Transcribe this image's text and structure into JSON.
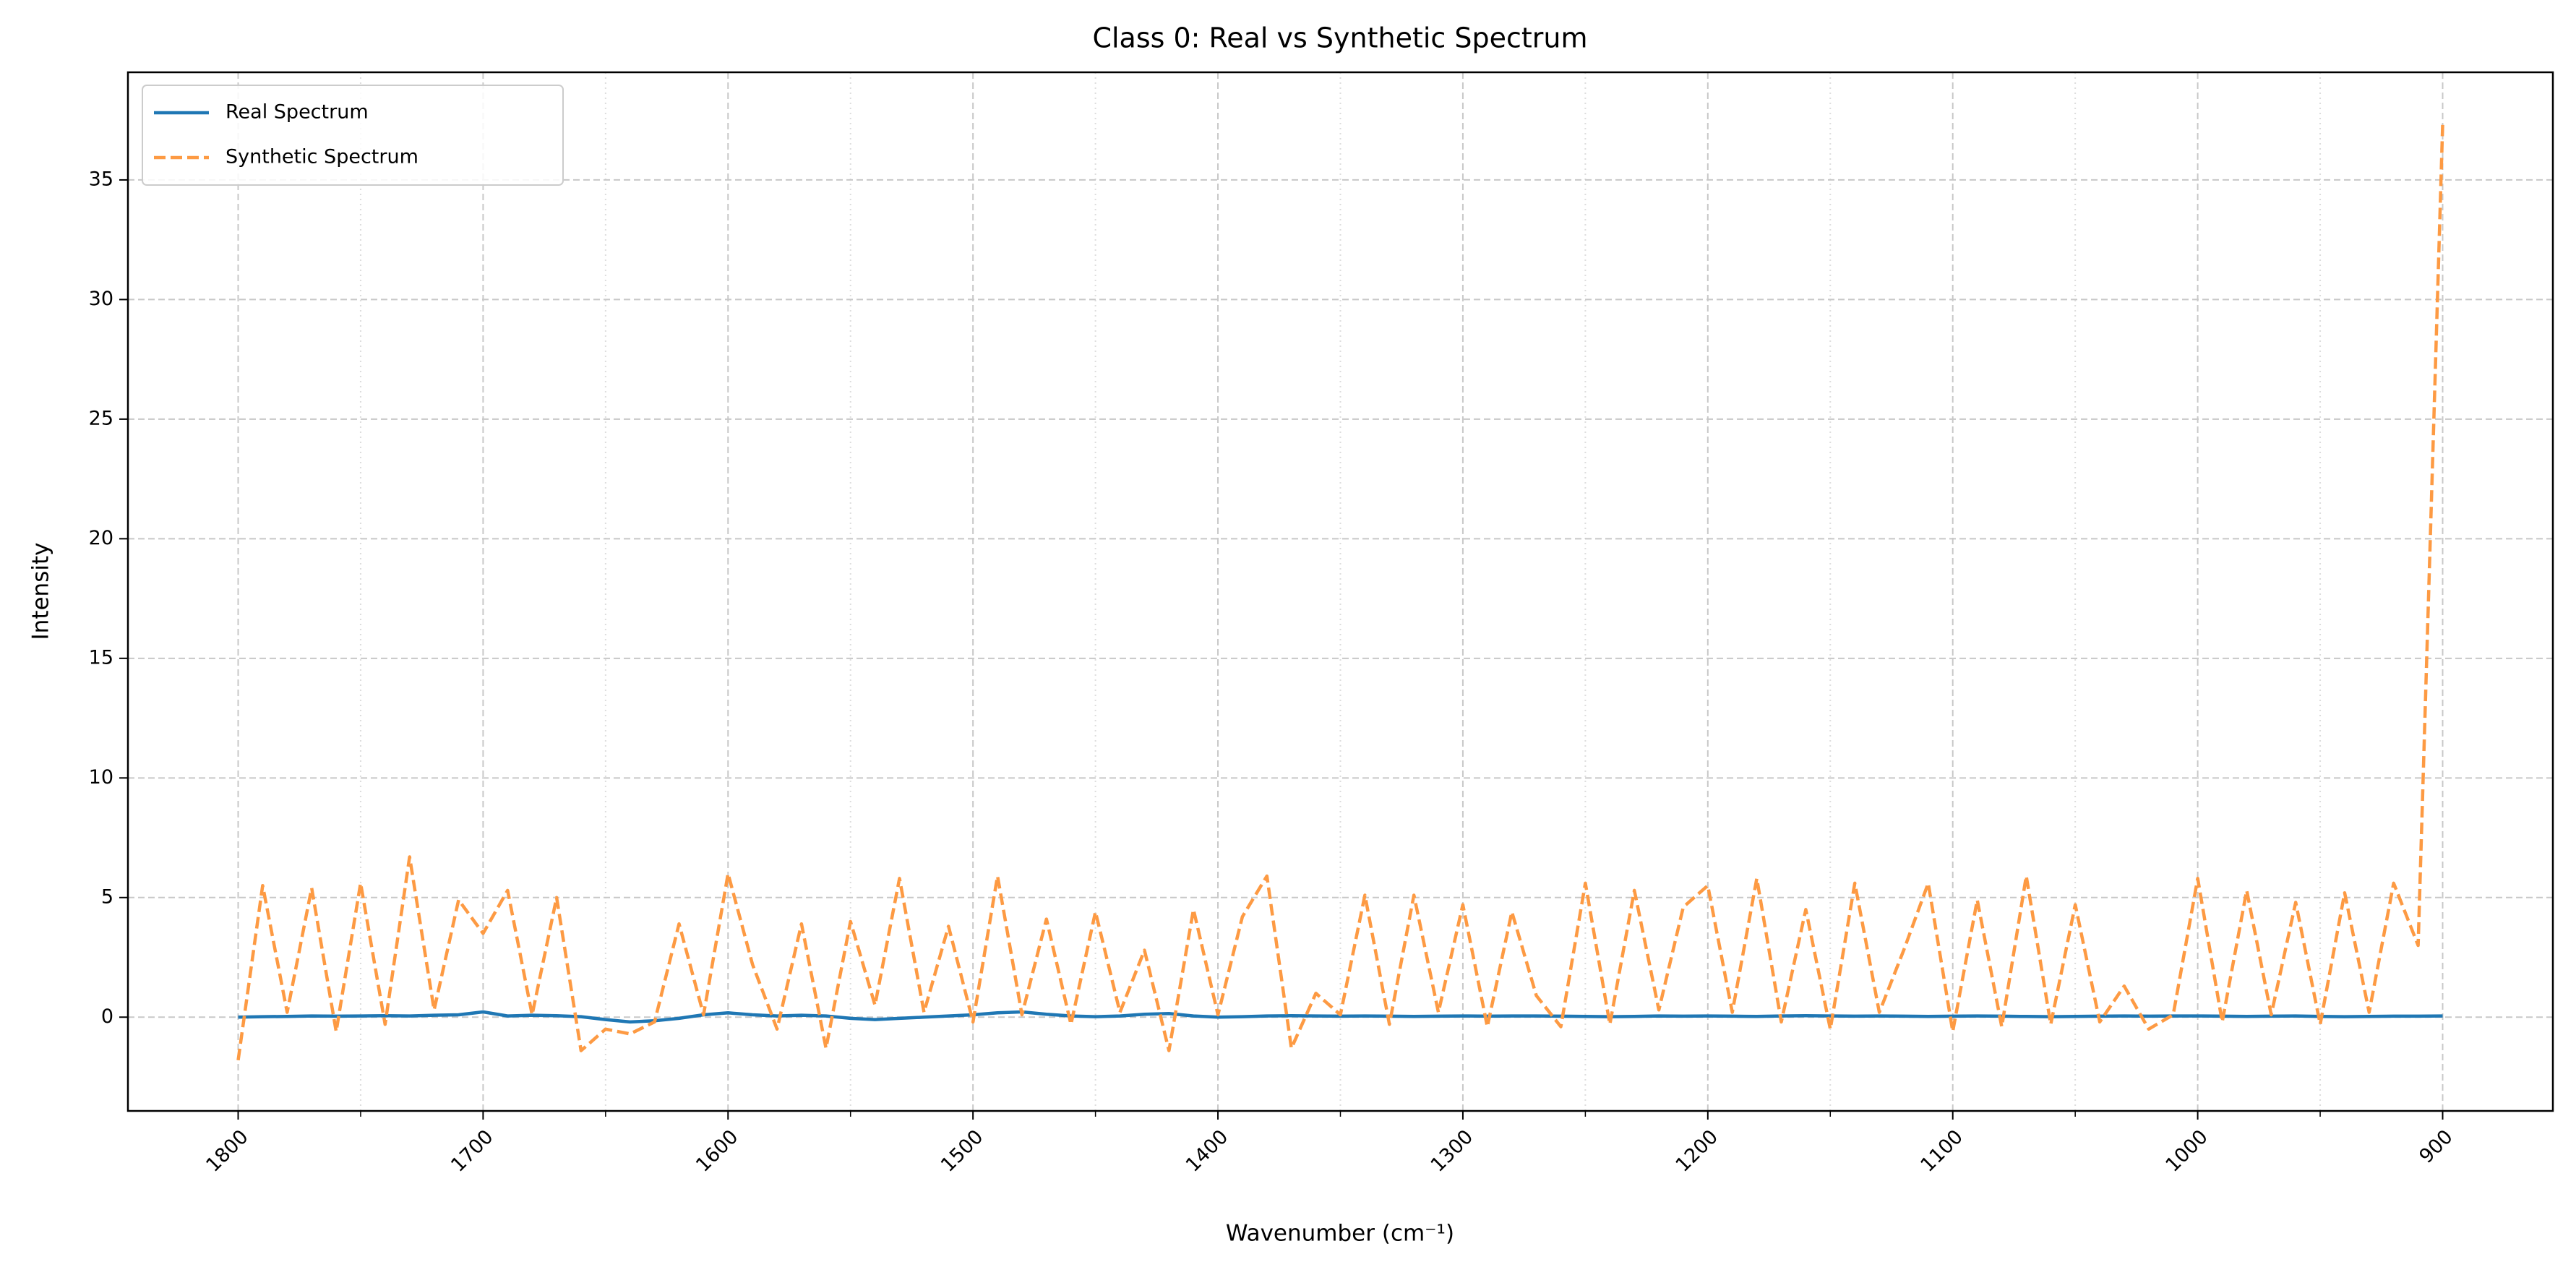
{
  "chart_data": {
    "type": "line",
    "title": "Class 0: Real vs Synthetic Spectrum",
    "xlabel": "Wavenumber (cm⁻¹)",
    "ylabel": "Intensity",
    "x": [
      1800,
      1790,
      1780,
      1770,
      1760,
      1750,
      1740,
      1730,
      1720,
      1710,
      1700,
      1690,
      1680,
      1670,
      1660,
      1650,
      1640,
      1630,
      1620,
      1610,
      1600,
      1590,
      1580,
      1570,
      1560,
      1550,
      1540,
      1530,
      1520,
      1510,
      1500,
      1490,
      1480,
      1470,
      1460,
      1450,
      1440,
      1430,
      1420,
      1410,
      1400,
      1390,
      1380,
      1370,
      1360,
      1350,
      1340,
      1330,
      1320,
      1310,
      1300,
      1290,
      1280,
      1270,
      1260,
      1250,
      1240,
      1230,
      1220,
      1210,
      1200,
      1190,
      1180,
      1170,
      1160,
      1150,
      1140,
      1130,
      1120,
      1110,
      1100,
      1090,
      1080,
      1070,
      1060,
      1050,
      1040,
      1030,
      1020,
      1010,
      1000,
      990,
      980,
      970,
      960,
      950,
      940,
      930,
      920,
      910,
      900
    ],
    "series": [
      {
        "name": "Real Spectrum",
        "color": "#1f77b4",
        "dash": false,
        "values": [
          0.0,
          0.02,
          0.03,
          0.05,
          0.04,
          0.05,
          0.06,
          0.05,
          0.08,
          0.1,
          0.22,
          0.05,
          0.08,
          0.06,
          0.02,
          -0.1,
          -0.2,
          -0.15,
          -0.05,
          0.1,
          0.18,
          0.1,
          0.05,
          0.08,
          0.05,
          -0.05,
          -0.1,
          -0.05,
          0.0,
          0.05,
          0.1,
          0.18,
          0.22,
          0.12,
          0.05,
          0.02,
          0.05,
          0.12,
          0.15,
          0.05,
          0.0,
          0.02,
          0.05,
          0.06,
          0.05,
          0.04,
          0.05,
          0.04,
          0.03,
          0.04,
          0.05,
          0.04,
          0.05,
          0.05,
          0.04,
          0.03,
          0.02,
          0.03,
          0.05,
          0.04,
          0.05,
          0.04,
          0.03,
          0.05,
          0.06,
          0.05,
          0.04,
          0.05,
          0.04,
          0.03,
          0.04,
          0.05,
          0.04,
          0.03,
          0.02,
          0.03,
          0.04,
          0.05,
          0.04,
          0.05,
          0.05,
          0.04,
          0.03,
          0.04,
          0.05,
          0.03,
          0.02,
          0.03,
          0.04,
          0.04,
          0.05
        ]
      },
      {
        "name": "Synthetic Spectrum",
        "color": "#fd9a43",
        "dash": true,
        "values": [
          -1.8,
          5.5,
          0.2,
          5.4,
          -0.6,
          5.6,
          -0.3,
          6.7,
          0.3,
          4.9,
          3.5,
          5.3,
          0.1,
          5.0,
          -1.4,
          -0.5,
          -0.7,
          -0.2,
          3.9,
          0.1,
          6.0,
          2.2,
          -0.5,
          3.9,
          -1.3,
          4.0,
          0.5,
          5.8,
          0.2,
          3.8,
          -0.2,
          5.9,
          0.1,
          4.1,
          -0.3,
          4.4,
          0.2,
          2.8,
          -1.4,
          4.5,
          0.1,
          4.2,
          5.9,
          -1.3,
          1.0,
          0.1,
          5.1,
          -0.3,
          5.1,
          0.2,
          4.7,
          -0.4,
          4.4,
          0.9,
          -0.4,
          5.6,
          -0.3,
          5.3,
          0.3,
          4.6,
          5.5,
          0.2,
          5.8,
          -0.2,
          4.5,
          -0.5,
          5.6,
          0.2,
          2.8,
          5.6,
          -0.6,
          4.9,
          -0.4,
          5.9,
          -0.3,
          4.7,
          -0.2,
          1.3,
          -0.5,
          0.1,
          5.8,
          -0.2,
          5.3,
          0.1,
          4.8,
          -0.3,
          5.2,
          0.2,
          5.6,
          3.0,
          37.3
        ]
      }
    ],
    "xlim": [
      1845,
      855
    ],
    "ylim": [
      -3.92,
      39.5
    ],
    "xticks": [
      1800,
      1700,
      1600,
      1500,
      1400,
      1300,
      1200,
      1100,
      1000,
      900
    ],
    "xminorticks": [
      1750,
      1650,
      1550,
      1450,
      1350,
      1250,
      1150,
      1050,
      950
    ],
    "yticks": [
      0,
      5,
      10,
      15,
      20,
      25,
      30,
      35
    ],
    "grid": true,
    "legend": "upper left"
  }
}
